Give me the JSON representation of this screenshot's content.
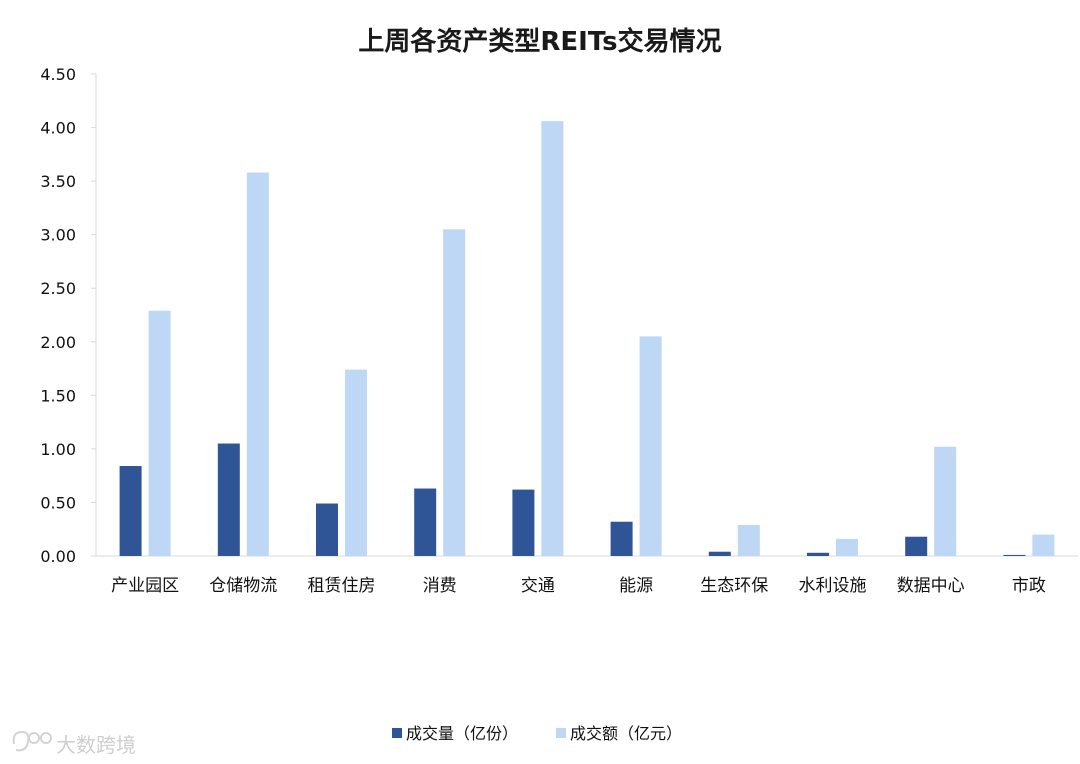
{
  "chart_data": {
    "type": "bar",
    "title": "上周各资产类型REITs交易情况",
    "categories": [
      "产业园区",
      "仓储物流",
      "租赁住房",
      "消费",
      "交通",
      "能源",
      "生态环保",
      "水利设施",
      "数据中心",
      "市政"
    ],
    "series": [
      {
        "name": "成交量（亿份）",
        "color": "#2F5597",
        "values": [
          0.84,
          1.05,
          0.49,
          0.63,
          0.62,
          0.32,
          0.04,
          0.03,
          0.18,
          0.01
        ]
      },
      {
        "name": "成交额（亿元）",
        "color": "#BDD7F4",
        "values": [
          2.29,
          3.58,
          1.74,
          3.05,
          4.06,
          2.05,
          0.29,
          0.16,
          1.02,
          0.2
        ]
      }
    ],
    "ylim": [
      0,
      4.5
    ],
    "yticks": [
      "0.00",
      "0.50",
      "1.00",
      "1.50",
      "2.00",
      "2.50",
      "3.00",
      "3.50",
      "4.00",
      "4.50"
    ],
    "xlabel": "",
    "ylabel": "",
    "grid": false,
    "legend_position": "bottom"
  },
  "watermark": {
    "text": "大数跨境",
    "icon": "logo-icon"
  }
}
